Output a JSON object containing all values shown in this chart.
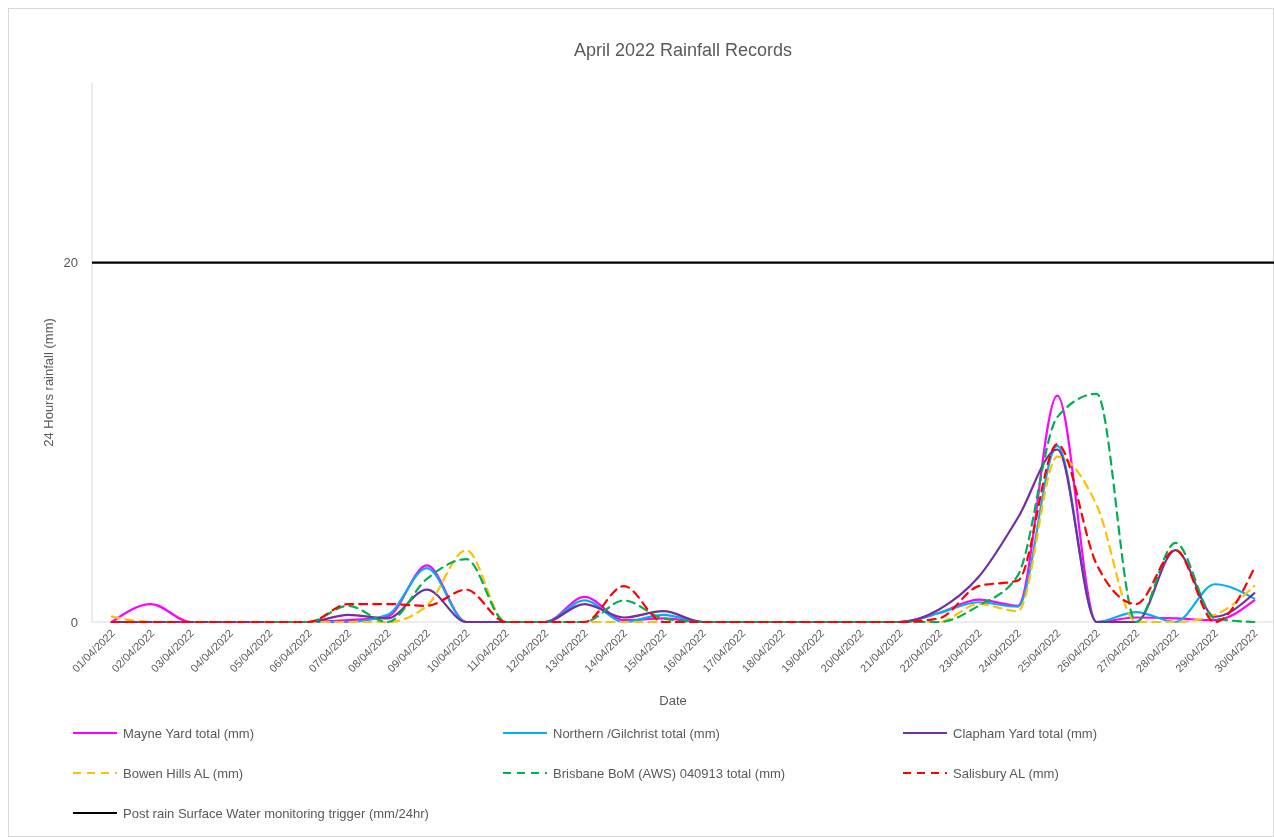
{
  "chart_data": {
    "type": "line",
    "title": "April 2022 Rainfall Records",
    "xlabel": "Date",
    "ylabel": "24 Hours rainfall (mm)",
    "categories": [
      "01/04/2022",
      "02/04/2022",
      "03/04/2022",
      "04/04/2022",
      "05/04/2022",
      "06/04/2022",
      "07/04/2022",
      "08/04/2022",
      "09/04/2022",
      "10/04/2022",
      "11/04/2022",
      "12/04/2022",
      "13/04/2022",
      "14/04/2022",
      "15/04/2022",
      "16/04/2022",
      "17/04/2022",
      "18/04/2022",
      "19/04/2022",
      "20/04/2022",
      "21/04/2022",
      "22/04/2022",
      "23/04/2022",
      "24/04/2022",
      "25/04/2022",
      "26/04/2022",
      "27/04/2022",
      "28/04/2022",
      "29/04/2022",
      "30/04/2022"
    ],
    "ylim": [
      0,
      30
    ],
    "yticks": [
      0,
      20
    ],
    "grid": false,
    "legend": "bottom",
    "marker": "none",
    "series": [
      {
        "name": "Mayne Yard total (mm)",
        "color": "#ff00ff",
        "line_style": "solid",
        "values": [
          0,
          1.0,
          0,
          0,
          0,
          0,
          0.1,
          0.3,
          3.15,
          0,
          0,
          0,
          1.4,
          0.1,
          0.2,
          0,
          0,
          0,
          0,
          0,
          0,
          0.5,
          1.25,
          0.9,
          12.6,
          0,
          0.25,
          0.2,
          0.1,
          1.2
        ]
      },
      {
        "name": "Northern  /Gilchrist total (mm)",
        "color": "#00b0f0",
        "line_style": "solid",
        "values": [
          null,
          null,
          null,
          null,
          0,
          0,
          0,
          0.4,
          3.0,
          0,
          0,
          0,
          1.2,
          0,
          0.4,
          0,
          0,
          0,
          0,
          0,
          0,
          0.5,
          1.1,
          0.85,
          9.8,
          0,
          0.55,
          0,
          2.1,
          1.3
        ]
      },
      {
        "name": "Clapham Yard total (mm)",
        "color": "#7030a0",
        "line_style": "solid",
        "values": [
          0,
          0,
          0,
          0,
          0,
          0,
          0.4,
          0.2,
          1.8,
          0,
          0,
          0,
          1.0,
          0.25,
          0.6,
          0,
          0,
          0,
          0,
          0,
          0,
          0.7,
          2.5,
          5.8,
          9.6,
          0,
          0,
          4.0,
          0.3,
          1.6
        ]
      },
      {
        "name": "Bowen Hills AL (mm)",
        "color": "#ffc000",
        "line_style": "dashed",
        "values": [
          0.3,
          0,
          0,
          0,
          0,
          0,
          0,
          0,
          0.9,
          4.0,
          0,
          0,
          0,
          0,
          0,
          0,
          0,
          0,
          0,
          0,
          0,
          0,
          1.0,
          0.6,
          9.2,
          6.5,
          0,
          0,
          0.4,
          2.0
        ]
      },
      {
        "name": "Brisbane BoM (AWS) 040913 total (mm)",
        "color": "#00b050",
        "line_style": "dashed",
        "values": [
          null,
          null,
          null,
          null,
          0,
          0,
          0.9,
          0,
          2.4,
          3.5,
          0,
          0,
          0,
          1.2,
          0.2,
          0,
          0,
          0,
          0,
          0,
          0,
          0,
          0.9,
          2.6,
          11.4,
          12.7,
          0,
          4.4,
          0.2,
          0
        ]
      },
      {
        "name": "Salisbury AL (mm)",
        "color": "#ff0000",
        "line_style": "dashed",
        "values": [
          0,
          0,
          0,
          0,
          0,
          0,
          1.0,
          1.0,
          0.9,
          1.8,
          0,
          0,
          0,
          2.0,
          0,
          0,
          0,
          0,
          0,
          0,
          0,
          0.2,
          2.0,
          2.3,
          9.9,
          3.2,
          1.0,
          4.0,
          0,
          3.0
        ]
      }
    ],
    "ref_lines": [
      {
        "axis": "y",
        "value": 20,
        "label": "Post rain Surface Water monitoring trigger (mm/24hr)",
        "color": "#000000",
        "line_style": "solid"
      }
    ]
  }
}
